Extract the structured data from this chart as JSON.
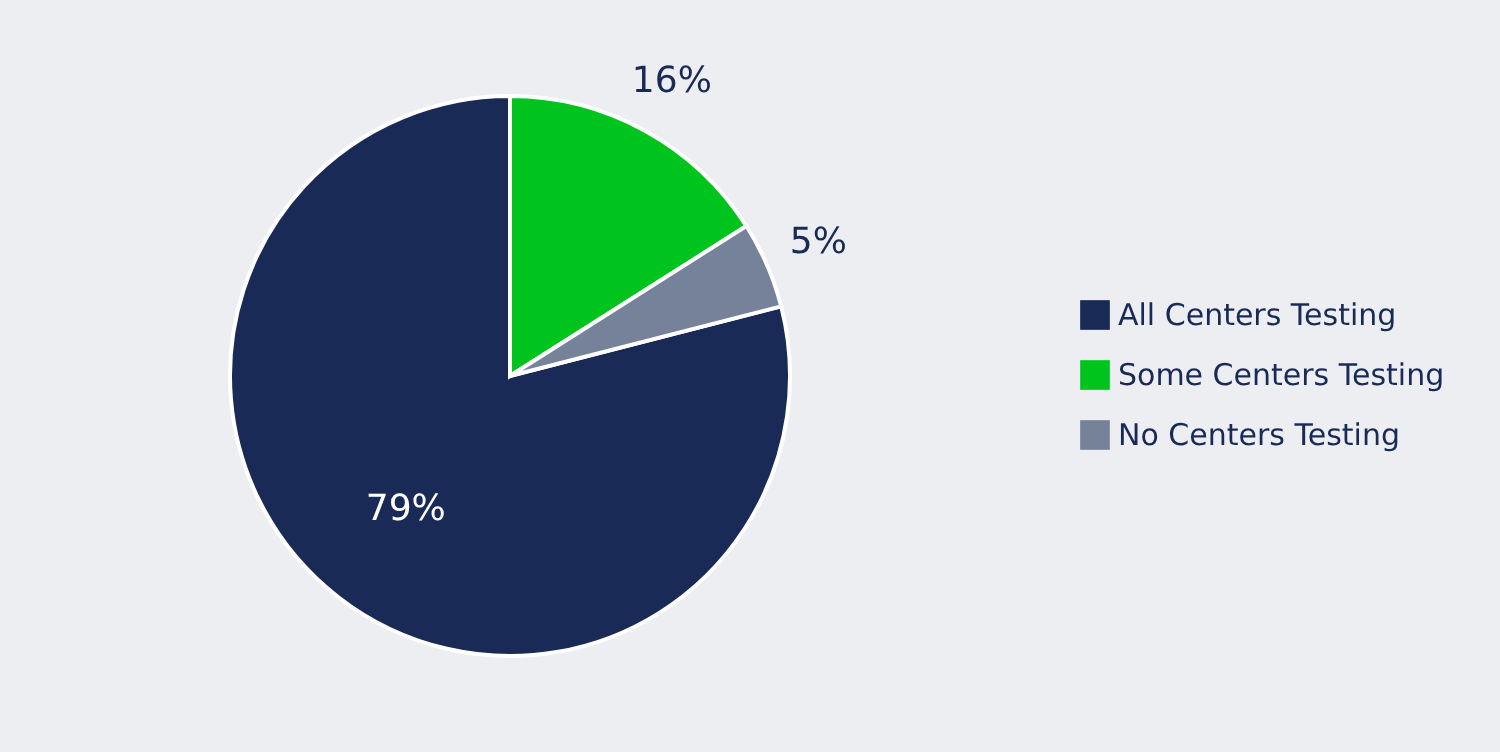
{
  "chart_data": {
    "type": "pie",
    "categories": [
      "All Centers Testing",
      "Some Centers Testing",
      "No Centers Testing"
    ],
    "values": [
      79,
      16,
      5
    ],
    "colors": [
      "#1a2a56",
      "#00c41e",
      "#76819a"
    ],
    "value_labels": [
      "79%",
      "16%",
      "5%"
    ],
    "legend": "right"
  }
}
